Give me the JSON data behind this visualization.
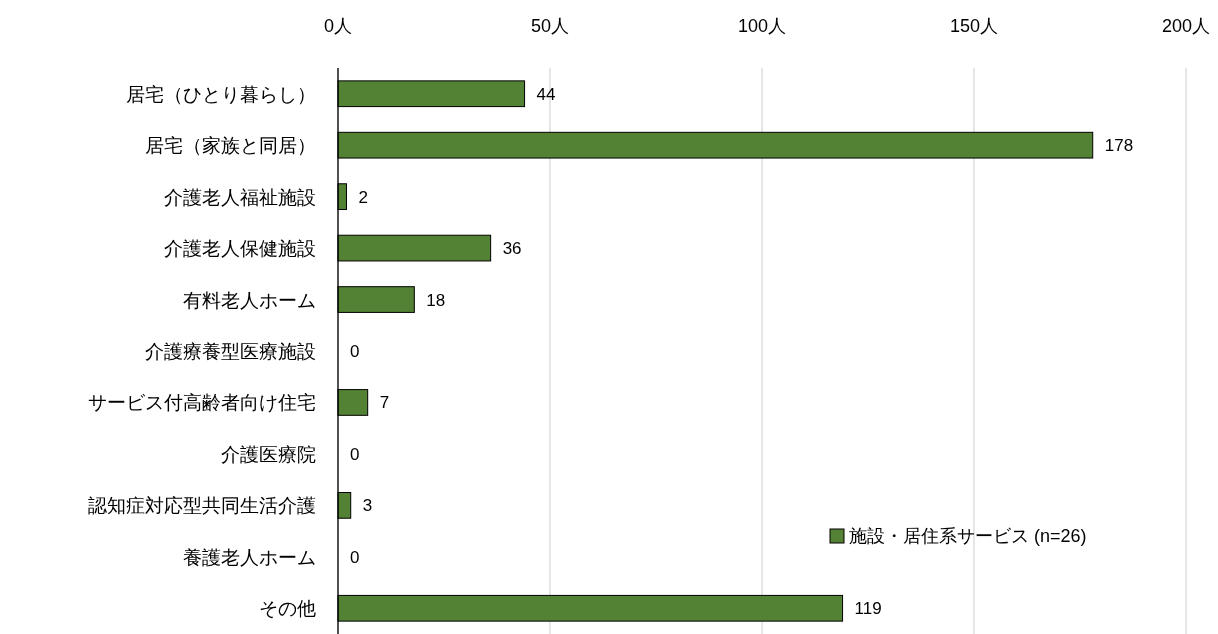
{
  "chart_data": {
    "type": "bar",
    "orientation": "horizontal",
    "categories": [
      "居宅（ひとり暮らし）",
      "居宅（家族と同居）",
      "介護老人福祉施設",
      "介護老人保健施設",
      "有料老人ホーム",
      "介護療養型医療施設",
      "サービス付高齢者向け住宅",
      "介護医療院",
      "認知症対応型共同生活介護",
      "養護老人ホーム",
      "その他"
    ],
    "series": [
      {
        "name": "施設・居住系サービス (n=26)",
        "color": "#548235",
        "values": [
          44,
          178,
          2,
          36,
          18,
          0,
          7,
          0,
          3,
          0,
          119
        ]
      }
    ],
    "xlim": [
      0,
      200
    ],
    "xticks": [
      {
        "value": 0,
        "label": "0人"
      },
      {
        "value": 50,
        "label": "50人"
      },
      {
        "value": 100,
        "label": "100人"
      },
      {
        "value": 150,
        "label": "150人"
      },
      {
        "value": 200,
        "label": "200人"
      }
    ],
    "grid": "x",
    "legend": "bottom right",
    "data_labels": true
  }
}
